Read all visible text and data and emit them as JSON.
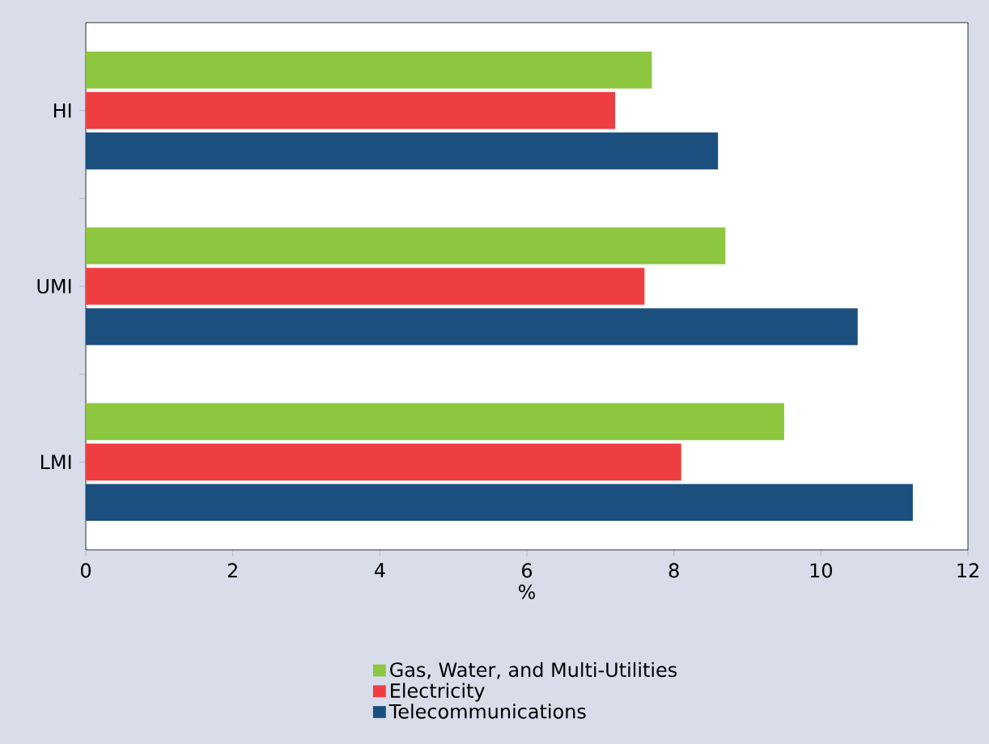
{
  "chart_data": {
    "type": "bar",
    "orientation": "horizontal",
    "xlabel": "%",
    "categories": [
      "HI",
      "UMI",
      "LMI"
    ],
    "series": [
      {
        "name": "Gas, Water, and Multi-Utilities",
        "color": "#8dc63f",
        "values": [
          7.7,
          8.7,
          9.5
        ]
      },
      {
        "name": "Electricity",
        "color": "#ef3e42",
        "values": [
          7.2,
          7.6,
          8.1
        ]
      },
      {
        "name": "Telecommunications",
        "color": "#1b4f7e",
        "values": [
          8.6,
          10.5,
          11.25
        ]
      }
    ],
    "xlim": [
      0,
      12
    ],
    "xticks": [
      0,
      2,
      4,
      6,
      8,
      10,
      12
    ],
    "legend": "bottom"
  }
}
